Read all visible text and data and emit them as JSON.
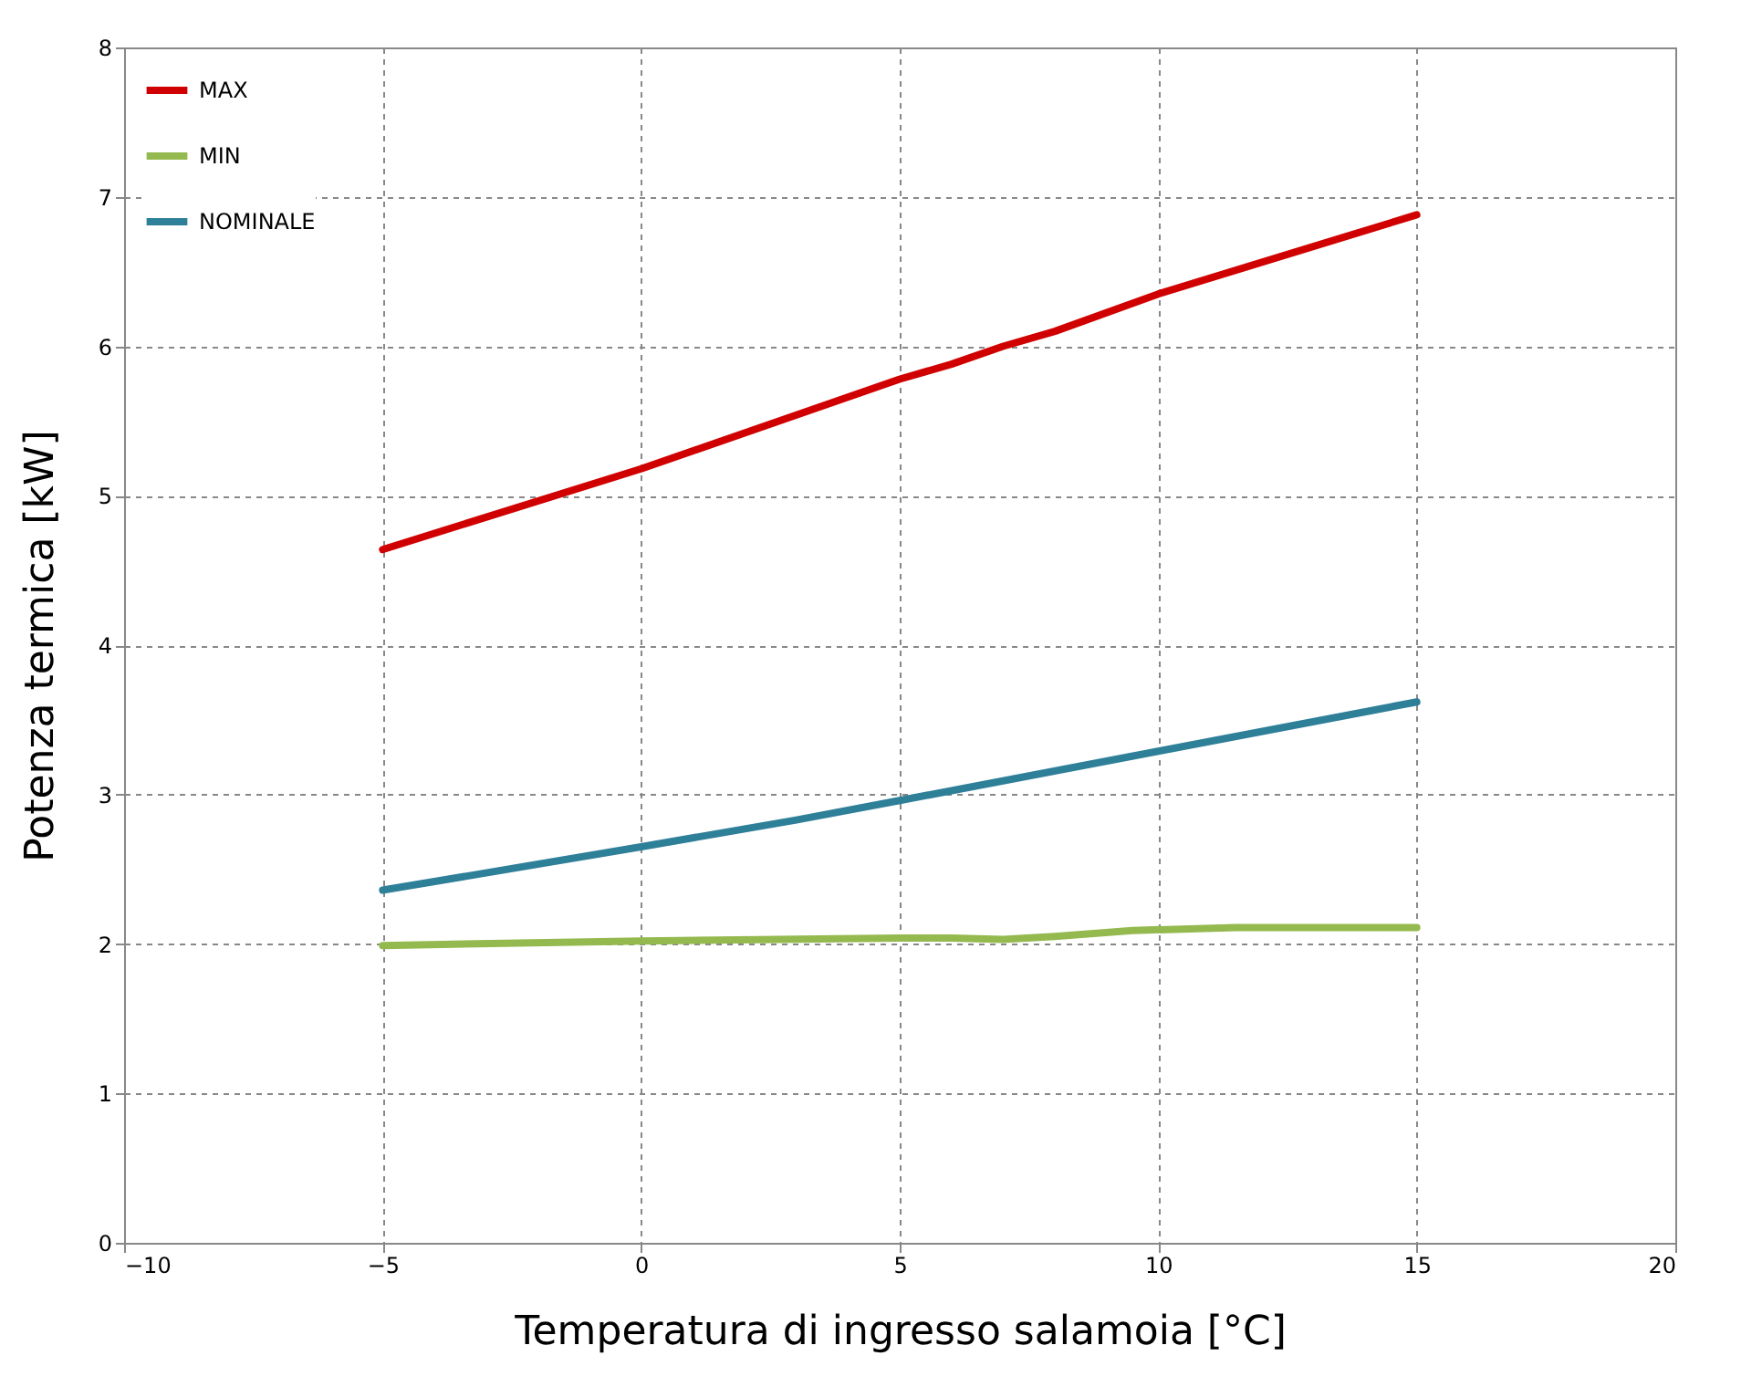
{
  "chart_data": {
    "type": "line",
    "xlabel": "Temperatura di ingresso salamoia [°C]",
    "ylabel": "Potenza termica [kW]",
    "xlim": [
      -10,
      20
    ],
    "xticks": [
      -10,
      -5,
      0,
      5,
      10,
      15,
      20
    ],
    "ylim": [
      0,
      8
    ],
    "yticks": [
      0,
      1,
      2,
      3,
      4,
      5,
      6,
      7,
      8
    ],
    "grid": true,
    "legend": "top left",
    "marker": "none",
    "line_style": "solid",
    "series": [
      {
        "name": "MAX",
        "color": "#d00000",
        "x": [
          -5,
          0,
          5,
          6,
          7,
          8,
          10,
          15
        ],
        "values": [
          4.64,
          5.18,
          5.78,
          5.88,
          6.0,
          6.1,
          6.35,
          6.88
        ]
      },
      {
        "name": "MIN",
        "color": "#94b94e",
        "x": [
          -5,
          0,
          5,
          6,
          7,
          8,
          9.5,
          11.5,
          15
        ],
        "values": [
          1.99,
          2.02,
          2.04,
          2.04,
          2.03,
          2.05,
          2.09,
          2.11,
          2.11
        ]
      },
      {
        "name": "NOMINALE",
        "color": "#2e7f98",
        "x": [
          -5,
          0,
          3,
          5,
          10,
          15
        ],
        "values": [
          2.36,
          2.65,
          2.83,
          2.96,
          3.29,
          3.62
        ]
      }
    ]
  }
}
